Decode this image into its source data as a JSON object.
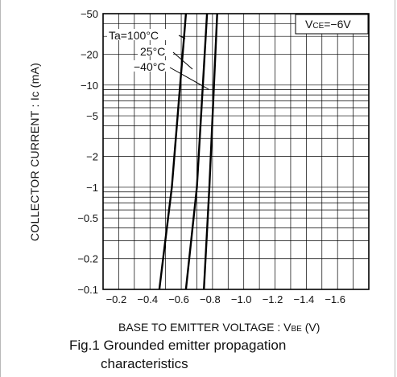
{
  "chart_data": {
    "type": "line",
    "title": "",
    "xlabel_main": "BASE TO EMITTER VOLTAGE : V",
    "xlabel_sub": "BE",
    "xlabel_unit": "(V)",
    "ylabel": "COLLECTOR CURRENT : Ic (mA)",
    "x_scale": "linear",
    "y_scale": "log",
    "xlim": [
      -0.1,
      -1.8
    ],
    "ylim": [
      -0.1,
      -50
    ],
    "grid": true,
    "x_ticks": [
      -0.2,
      -0.4,
      -0.6,
      -0.8,
      -1.0,
      -1.2,
      -1.4,
      -1.6
    ],
    "x_tick_labels": [
      "−0.2",
      "−0.4",
      "−0.6",
      "−0.8",
      "−1.0",
      "−1.2",
      "−1.4",
      "−1.6"
    ],
    "y_ticks": [
      -0.1,
      -0.2,
      -0.5,
      -1,
      -2,
      -5,
      -10,
      -20,
      -50
    ],
    "y_tick_labels": [
      "−0.1",
      "−0.2",
      "−0.5",
      "−1",
      "−2",
      "−5",
      "−10",
      "−20",
      "−50"
    ],
    "condition": {
      "main": "V",
      "sub": "CE",
      "value": "=−6V"
    },
    "series": [
      {
        "name": "Ta=100°C",
        "x": [
          -0.46,
          -0.54,
          -0.63
        ],
        "y": [
          -0.1,
          -1,
          -50
        ]
      },
      {
        "name": "25°C",
        "x": [
          -0.63,
          -0.7,
          -0.765
        ],
        "y": [
          -0.1,
          -1,
          -50
        ]
      },
      {
        "name": "−40°C",
        "x": [
          -0.745,
          -0.78,
          -0.83
        ],
        "y": [
          -0.1,
          -1,
          -50
        ]
      }
    ]
  },
  "caption": {
    "line1": "Fig.1  Grounded emitter propagation",
    "line2": "characteristics"
  }
}
